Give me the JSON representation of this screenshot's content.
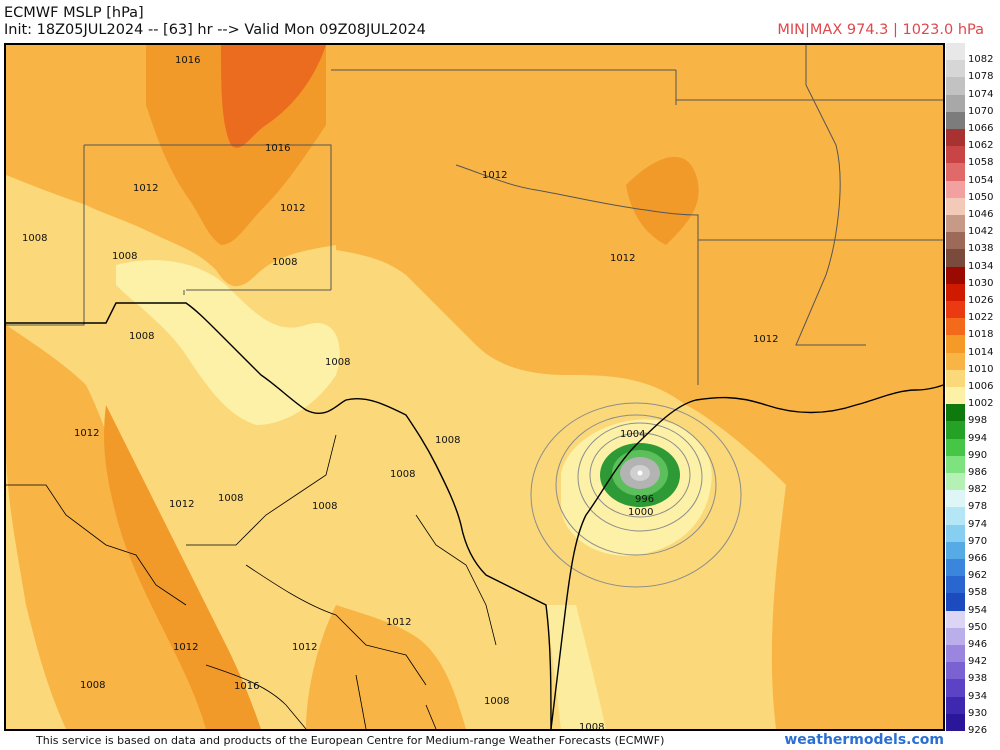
{
  "header": {
    "title": "ECMWF MSLP [hPa]",
    "init_line": "Init: 18Z05JUL2024 -- [63] hr --> Valid Mon 09Z08JUL2024",
    "minmax": "MIN|MAX 974.3 | 1023.0 hPa"
  },
  "footer": {
    "attribution": "This service is based on data and products of the European Centre for Medium-range Weather Forecasts (ECMWF)",
    "brand": "weathermodels.com"
  },
  "map": {
    "isobar_labels": [
      "1016",
      "1016",
      "1012",
      "1012",
      "1008",
      "1008",
      "1012",
      "1012",
      "1008",
      "1012",
      "1008",
      "1012",
      "1008",
      "1008",
      "1008",
      "1012",
      "1008",
      "1008",
      "1004",
      "996",
      "1000",
      "1012",
      "1012",
      "1016",
      "1012",
      "1008",
      "1008",
      "1008"
    ],
    "colors": {
      "low_green": "#2e9a35",
      "low_gray": "#b3b3b3",
      "pale_yellow": "#fdf1a8",
      "yellow": "#fbd97a",
      "light_orange": "#f8b445",
      "orange": "#f19a2a",
      "dark_orange": "#ec6c1f"
    }
  },
  "colorbar": {
    "items": [
      {
        "label": "1082",
        "color": "#e8e8e8"
      },
      {
        "label": "1078",
        "color": "#d6d6d6"
      },
      {
        "label": "1074",
        "color": "#c2c2c2"
      },
      {
        "label": "1070",
        "color": "#a8a8a8"
      },
      {
        "label": "1066",
        "color": "#7c7c7c"
      },
      {
        "label": "1062",
        "color": "#a83232"
      },
      {
        "label": "1058",
        "color": "#c94545"
      },
      {
        "label": "1054",
        "color": "#e06a6a"
      },
      {
        "label": "1050",
        "color": "#f3a0a0"
      },
      {
        "label": "1046",
        "color": "#f3c9b8"
      },
      {
        "label": "1042",
        "color": "#c79a87"
      },
      {
        "label": "1038",
        "color": "#9d6a5a"
      },
      {
        "label": "1034",
        "color": "#7a4a3c"
      },
      {
        "label": "1030",
        "color": "#9b0a00"
      },
      {
        "label": "1026",
        "color": "#d01a00"
      },
      {
        "label": "1022",
        "color": "#ea3a12"
      },
      {
        "label": "1018",
        "color": "#f26a1a"
      },
      {
        "label": "1014",
        "color": "#f69a27"
      },
      {
        "label": "1010",
        "color": "#f8b445"
      },
      {
        "label": "1006",
        "color": "#fbd97a"
      },
      {
        "label": "1002",
        "color": "#fdf1a8"
      },
      {
        "label": "998",
        "color": "#0e7a0e"
      },
      {
        "label": "994",
        "color": "#25a125"
      },
      {
        "label": "990",
        "color": "#47c547"
      },
      {
        "label": "986",
        "color": "#7ee27e"
      },
      {
        "label": "982",
        "color": "#b5f0b5"
      },
      {
        "label": "978",
        "color": "#dff6f6"
      },
      {
        "label": "974",
        "color": "#b5e6f5"
      },
      {
        "label": "970",
        "color": "#86cff0"
      },
      {
        "label": "966",
        "color": "#56aae6"
      },
      {
        "label": "962",
        "color": "#3a86dc"
      },
      {
        "label": "958",
        "color": "#2a66d0"
      },
      {
        "label": "954",
        "color": "#1c4bbf"
      },
      {
        "label": "950",
        "color": "#dcd6f4"
      },
      {
        "label": "946",
        "color": "#bcaeea"
      },
      {
        "label": "942",
        "color": "#9a86df"
      },
      {
        "label": "938",
        "color": "#7a62d2"
      },
      {
        "label": "934",
        "color": "#5c42c4"
      },
      {
        "label": "930",
        "color": "#3e28b0"
      },
      {
        "label": "926",
        "color": "#2a1698"
      }
    ]
  }
}
